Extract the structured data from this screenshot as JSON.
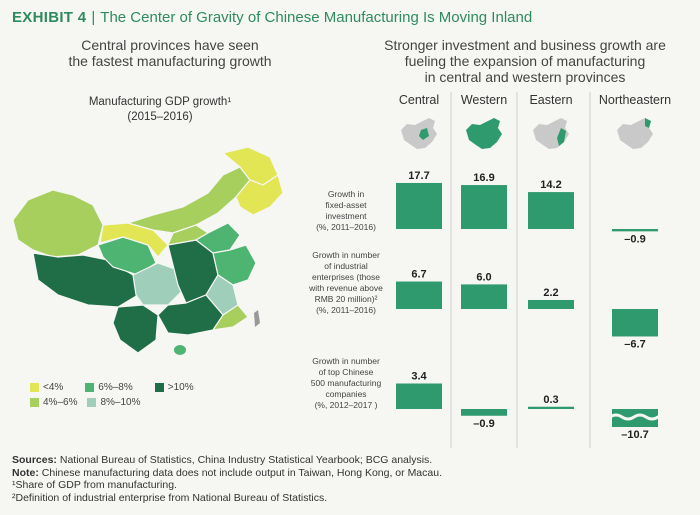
{
  "header": {
    "exhibit_label": "EXHIBIT 4",
    "title": "The Center of Gravity of Chinese Manufacturing Is Moving Inland"
  },
  "left": {
    "subtitle_line1": "Central provinces have seen",
    "subtitle_line2": "the fastest manufacturing growth",
    "map_title": "Manufacturing GDP growth¹",
    "map_period": "(2015–2016)",
    "legend": [
      {
        "label": "<4%",
        "color": "#e2e655"
      },
      {
        "label": "4%–6%",
        "color": "#a6cf5e"
      },
      {
        "label": "6%–8%",
        "color": "#4db472"
      },
      {
        "label": "8%–10%",
        "color": "#9fcfbb"
      },
      {
        "label": ">10%",
        "color": "#1f6e47"
      }
    ]
  },
  "right": {
    "subtitle_line1": "Stronger investment and business growth are",
    "subtitle_line2": "fueling the expansion of manufacturing",
    "subtitle_line3": "in central and western provinces",
    "row_labels": [
      [
        "Growth in",
        "fixed-asset",
        "investment",
        "(%, 2011–2016)"
      ],
      [
        "Growth in number",
        "of industrial",
        "enterprises (those",
        "with revenue above",
        "RMB 20 million)²",
        "(%, 2011–2016)"
      ],
      [
        "Growth in number",
        "of top Chinese",
        "500 manufacturing",
        "companies",
        "(%, 2012–2017 )"
      ]
    ]
  },
  "chart_data": {
    "type": "bar",
    "categories": [
      "Central",
      "Western",
      "Eastern",
      "Northeastern"
    ],
    "series": [
      {
        "name": "Growth in fixed-asset investment (%, 2011–2016)",
        "values": [
          17.7,
          16.9,
          14.2,
          -0.9
        ]
      },
      {
        "name": "Growth in number of industrial enterprises (those with revenue above RMB 20 million)² (%, 2011–2016)",
        "values": [
          6.7,
          6.0,
          2.2,
          -6.7
        ]
      },
      {
        "name": "Growth in number of top Chinese 500 manufacturing companies (%, 2012–2017 )",
        "values": [
          3.4,
          -0.9,
          0.3,
          -10.7
        ]
      }
    ],
    "value_labels": [
      [
        "17.7",
        "16.9",
        "14.2",
        "–0.9"
      ],
      [
        "6.7",
        "6.0",
        "2.2",
        "–6.7"
      ],
      [
        "3.4",
        "–0.9",
        "0.3",
        "–10.7"
      ]
    ],
    "bar_color": "#2e9a6e",
    "axis_break_on": "Northeastern, top Chinese 500 manufacturing companies"
  },
  "footer": {
    "sources_label": "Sources:",
    "sources_text": "National Bureau of Statistics, China Industry Statistical Yearbook; BCG analysis.",
    "note_label": "Note:",
    "note_text": "Chinese manufacturing data does not include output in Taiwan, Hong Kong, or Macau.",
    "footnote1": "¹Share of GDP from manufacturing.",
    "footnote2": "²Definition of industrial enterprise from National Bureau of Statistics."
  }
}
